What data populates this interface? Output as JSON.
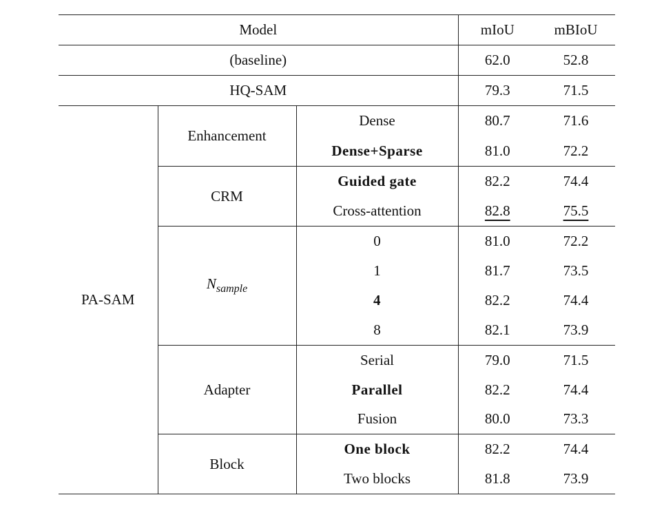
{
  "header": {
    "model": "Model",
    "miou": "mIoU",
    "mbiou": "mBIoU"
  },
  "baseline": {
    "label": "(baseline)",
    "miou": "62.0",
    "mbiou": "52.8"
  },
  "hqsam": {
    "label": "HQ-SAM",
    "miou": "79.3",
    "mbiou": "71.5"
  },
  "pasam": {
    "label": "PA-SAM",
    "groups": [
      {
        "name": "Enhancement",
        "rows": [
          {
            "variant": "Dense",
            "miou": "80.7",
            "mbiou": "71.6"
          },
          {
            "variant": "Dense+Sparse",
            "miou": "81.0",
            "mbiou": "72.2",
            "bold": true
          }
        ]
      },
      {
        "name": "CRM",
        "rows": [
          {
            "variant": "Guided gate",
            "miou": "82.2",
            "mbiou": "74.4",
            "bold": true
          },
          {
            "variant": "Cross-attention",
            "miou": "82.8",
            "mbiou": "75.5",
            "underline": true
          }
        ]
      },
      {
        "name": "N",
        "name_sub": "sample",
        "rows": [
          {
            "variant": "0",
            "miou": "81.0",
            "mbiou": "72.2"
          },
          {
            "variant": "1",
            "miou": "81.7",
            "mbiou": "73.5"
          },
          {
            "variant": "4",
            "miou": "82.2",
            "mbiou": "74.4",
            "bold": true
          },
          {
            "variant": "8",
            "miou": "82.1",
            "mbiou": "73.9"
          }
        ]
      },
      {
        "name": "Adapter",
        "rows": [
          {
            "variant": "Serial",
            "miou": "79.0",
            "mbiou": "71.5"
          },
          {
            "variant": "Parallel",
            "miou": "82.2",
            "mbiou": "74.4",
            "bold": true
          },
          {
            "variant": "Fusion",
            "miou": "80.0",
            "mbiou": "73.3"
          }
        ]
      },
      {
        "name": "Block",
        "rows": [
          {
            "variant": "One block",
            "miou": "82.2",
            "mbiou": "74.4",
            "bold": true
          },
          {
            "variant": "Two blocks",
            "miou": "81.8",
            "mbiou": "73.9"
          }
        ]
      }
    ]
  }
}
